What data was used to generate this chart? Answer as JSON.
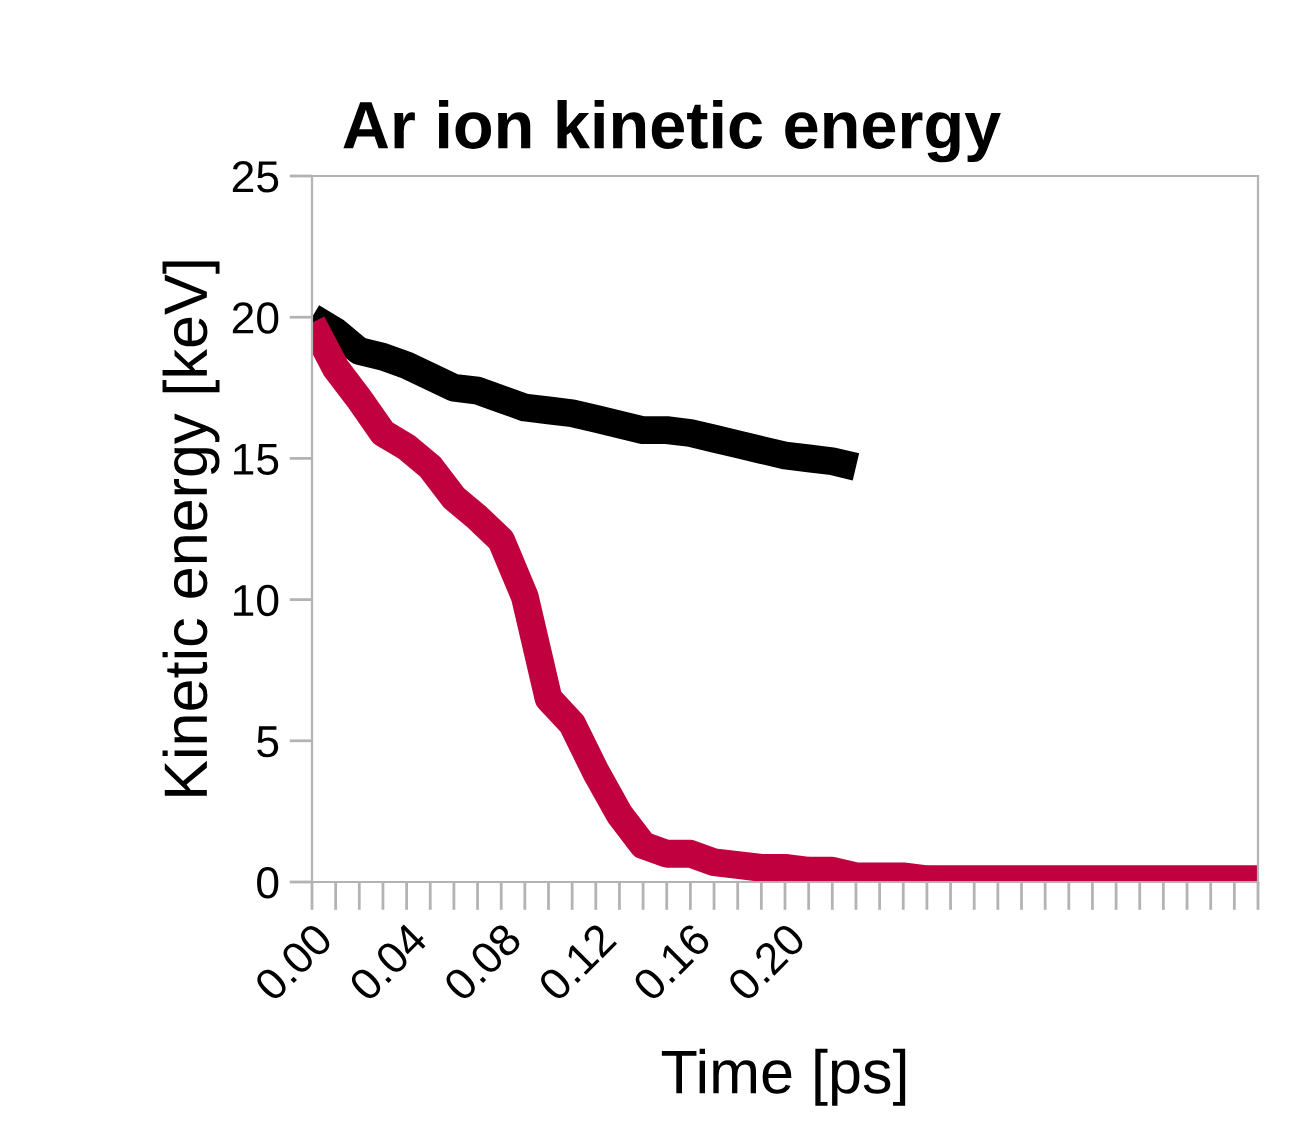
{
  "chart_data": {
    "type": "line",
    "title": "Ar ion kinetic energy",
    "xlabel": "Time [ps]",
    "ylabel": "Kinetic energy [keV]",
    "xlim": [
      0,
      0.4
    ],
    "xticks": [
      {
        "value": 0,
        "label": "0.00"
      },
      {
        "value": 0.01,
        "label": null
      },
      {
        "value": 0.02,
        "label": null
      },
      {
        "value": 0.03,
        "label": null
      },
      {
        "value": 0.04,
        "label": "0.04"
      },
      {
        "value": 0.05,
        "label": null
      },
      {
        "value": 0.06,
        "label": null
      },
      {
        "value": 0.07,
        "label": null
      },
      {
        "value": 0.08,
        "label": "0.08"
      },
      {
        "value": 0.09,
        "label": null
      },
      {
        "value": 0.1,
        "label": null
      },
      {
        "value": 0.11,
        "label": null
      },
      {
        "value": 0.12,
        "label": "0.12"
      },
      {
        "value": 0.13,
        "label": null
      },
      {
        "value": 0.14,
        "label": null
      },
      {
        "value": 0.15,
        "label": null
      },
      {
        "value": 0.16,
        "label": "0.16"
      },
      {
        "value": 0.17,
        "label": null
      },
      {
        "value": 0.18,
        "label": null
      },
      {
        "value": 0.19,
        "label": null
      },
      {
        "value": 0.2,
        "label": "0.20"
      },
      {
        "value": 0.21,
        "label": null
      },
      {
        "value": 0.22,
        "label": null
      },
      {
        "value": 0.23,
        "label": null
      },
      {
        "value": 0.24,
        "label": null
      },
      {
        "value": 0.25,
        "label": null
      },
      {
        "value": 0.26,
        "label": null
      },
      {
        "value": 0.27,
        "label": null
      },
      {
        "value": 0.28,
        "label": null
      },
      {
        "value": 0.29,
        "label": null
      },
      {
        "value": 0.3,
        "label": null
      },
      {
        "value": 0.31,
        "label": null
      },
      {
        "value": 0.32,
        "label": null
      },
      {
        "value": 0.33,
        "label": null
      },
      {
        "value": 0.34,
        "label": null
      },
      {
        "value": 0.35,
        "label": null
      },
      {
        "value": 0.36,
        "label": null
      },
      {
        "value": 0.37,
        "label": null
      },
      {
        "value": 0.38,
        "label": null
      },
      {
        "value": 0.39,
        "label": null
      },
      {
        "value": 0.4,
        "label": null
      }
    ],
    "ylim": [
      0,
      25
    ],
    "yticks": [
      0,
      5,
      10,
      15,
      20,
      25
    ],
    "grid": false,
    "marker": "none",
    "line_style": "solid",
    "series": [
      {
        "color": "#000000",
        "x": [
          0,
          0.01,
          0.02,
          0.03,
          0.04,
          0.05,
          0.06,
          0.07,
          0.08,
          0.09,
          0.1,
          0.11,
          0.12,
          0.13,
          0.14,
          0.15,
          0.16,
          0.17,
          0.18,
          0.19,
          0.2,
          0.21,
          0.22,
          0.23
        ],
        "values": [
          20.0,
          19.5,
          18.8,
          18.6,
          18.3,
          17.9,
          17.5,
          17.4,
          17.1,
          16.8,
          16.7,
          16.6,
          16.4,
          16.2,
          16.0,
          16.0,
          15.9,
          15.7,
          15.5,
          15.3,
          15.1,
          15.0,
          14.9,
          14.7
        ]
      },
      {
        "color": "#c0003f",
        "x": [
          0,
          0.01,
          0.02,
          0.03,
          0.04,
          0.05,
          0.06,
          0.07,
          0.08,
          0.09,
          0.1,
          0.11,
          0.12,
          0.13,
          0.14,
          0.15,
          0.16,
          0.17,
          0.18,
          0.19,
          0.2,
          0.21,
          0.22,
          0.23,
          0.24,
          0.25,
          0.26,
          0.27,
          0.28,
          0.29,
          0.3,
          0.31,
          0.32,
          0.33,
          0.34,
          0.35,
          0.36,
          0.37,
          0.38,
          0.39,
          0.4
        ],
        "values": [
          19.8,
          18.2,
          17.1,
          15.9,
          15.4,
          14.7,
          13.6,
          12.9,
          12.1,
          10.1,
          6.5,
          5.6,
          3.9,
          2.4,
          1.3,
          1.0,
          1.0,
          0.7,
          0.6,
          0.5,
          0.5,
          0.4,
          0.4,
          0.2,
          0.2,
          0.2,
          0.1,
          0.1,
          0.1,
          0.1,
          0.1,
          0.1,
          0.1,
          0.1,
          0.1,
          0.1,
          0.1,
          0.1,
          0.1,
          0.1,
          0.1
        ]
      }
    ]
  }
}
